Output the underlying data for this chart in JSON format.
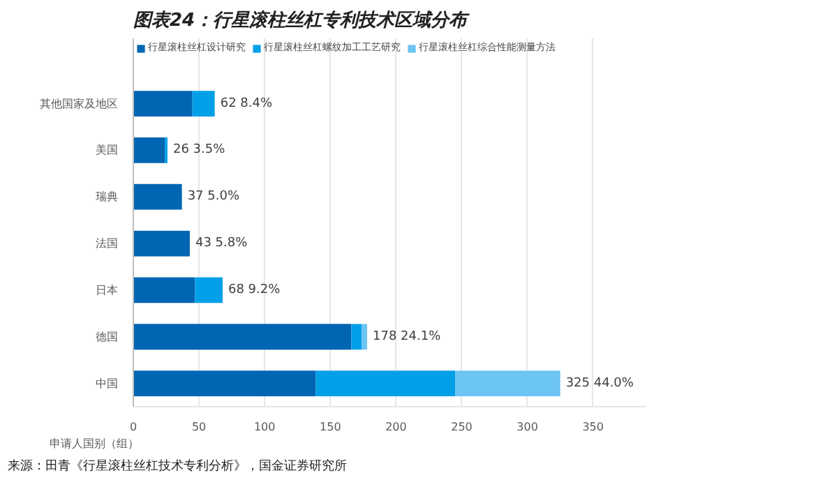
{
  "chart_data": {
    "type": "bar",
    "orientation": "horizontal",
    "stacked": true,
    "title": "图表24：行星滚柱丝杠专利技术区域分布",
    "ylabel": "申请人国别（组）",
    "categories": [
      "其他国家及地区",
      "美国",
      "瑞典",
      "法国",
      "日本",
      "德国",
      "中国"
    ],
    "series": [
      {
        "name": "行星滚柱丝杠设计研究",
        "color": "#0066b3",
        "values": [
          45,
          24,
          37,
          43,
          47,
          166,
          139
        ]
      },
      {
        "name": "行星滚柱丝杠螺纹加工工艺研究",
        "color": "#00a0e9",
        "values": [
          17,
          2,
          0,
          0,
          21,
          8,
          106
        ]
      },
      {
        "name": "行星滚柱丝杠综合性能测量方法",
        "color": "#6cc4f3",
        "values": [
          0,
          0,
          0,
          0,
          0,
          4,
          80
        ]
      }
    ],
    "totals": [
      "62  8.4%",
      "26  3.5%",
      "37  5.0%",
      "43  5.8%",
      "68  9.2%",
      "178  24.1%",
      "325  44.0%"
    ],
    "xlim": [
      0,
      390
    ],
    "xticks": [
      0,
      50,
      100,
      150,
      200,
      250,
      300,
      350
    ],
    "grid": "x",
    "legend": "top",
    "annotations": [
      "来源：田青《行星滚柱丝杠技术专利分析》，国金证券研究所"
    ]
  }
}
